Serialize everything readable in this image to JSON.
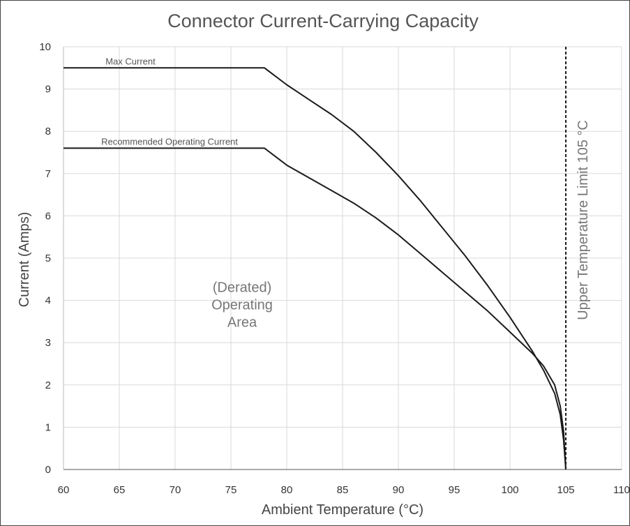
{
  "chart_data": {
    "type": "line",
    "title": "Connector Current-Carrying Capacity",
    "xlabel": "Ambient Temperature (°C)",
    "ylabel": "Current (Amps)",
    "xlim": [
      60,
      110
    ],
    "ylim": [
      0,
      10
    ],
    "xticks": [
      60,
      65,
      70,
      75,
      80,
      85,
      90,
      95,
      100,
      105,
      110
    ],
    "yticks": [
      0,
      1,
      2,
      3,
      4,
      5,
      6,
      7,
      8,
      9,
      10
    ],
    "grid": true,
    "series": [
      {
        "name": "Max Current",
        "color": "#1a1a1a",
        "x": [
          60,
          78,
          80,
          82,
          84,
          86,
          88,
          90,
          92,
          94,
          96,
          98,
          100,
          102,
          103,
          104,
          104.5,
          104.8,
          105
        ],
        "y": [
          9.5,
          9.5,
          9.1,
          8.75,
          8.4,
          8.0,
          7.5,
          6.95,
          6.35,
          5.7,
          5.05,
          4.35,
          3.6,
          2.8,
          2.35,
          1.8,
          1.3,
          0.7,
          0
        ]
      },
      {
        "name": "Recommended Operating Current",
        "color": "#1a1a1a",
        "x": [
          60,
          78,
          80,
          82,
          84,
          86,
          88,
          90,
          92,
          94,
          96,
          98,
          100,
          102,
          103,
          104,
          104.5,
          104.8,
          105
        ],
        "y": [
          7.6,
          7.6,
          7.2,
          6.9,
          6.6,
          6.3,
          5.95,
          5.55,
          5.1,
          4.65,
          4.2,
          3.75,
          3.25,
          2.75,
          2.45,
          2.0,
          1.5,
          0.9,
          0
        ]
      }
    ],
    "reference_line": {
      "x": 105,
      "label": "Upper Temperature Limit 105 °C",
      "style": "dashed"
    },
    "annotation": {
      "lines": [
        "(Derated)",
        "Operating",
        "Area"
      ],
      "x": 76,
      "y": 4
    }
  }
}
